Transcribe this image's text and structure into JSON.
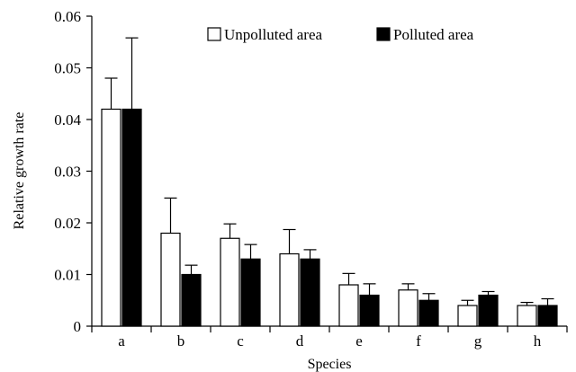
{
  "chart_data": {
    "type": "bar",
    "title": "",
    "xlabel": "Species",
    "ylabel": "Relative growth rate",
    "ylim": [
      0,
      0.06
    ],
    "yticks": [
      "0",
      "0.01",
      "0.02",
      "0.03",
      "0.04",
      "0.05",
      "0.06"
    ],
    "categories": [
      "a",
      "b",
      "c",
      "d",
      "e",
      "f",
      "g",
      "h"
    ],
    "legend_position": "top-right",
    "grid": false,
    "series": [
      {
        "name": "Unpolluted area",
        "fill": "#ffffff",
        "values": [
          0.042,
          0.018,
          0.017,
          0.014,
          0.008,
          0.007,
          0.004,
          0.004
        ],
        "errors": [
          0.006,
          0.0068,
          0.0028,
          0.0047,
          0.0022,
          0.0012,
          0.001,
          0.0006
        ]
      },
      {
        "name": "Polluted area",
        "fill": "#000000",
        "values": [
          0.042,
          0.01,
          0.013,
          0.013,
          0.006,
          0.005,
          0.006,
          0.004
        ],
        "errors": [
          0.0138,
          0.0018,
          0.0028,
          0.0018,
          0.0022,
          0.0013,
          0.0007,
          0.0013
        ]
      }
    ]
  }
}
